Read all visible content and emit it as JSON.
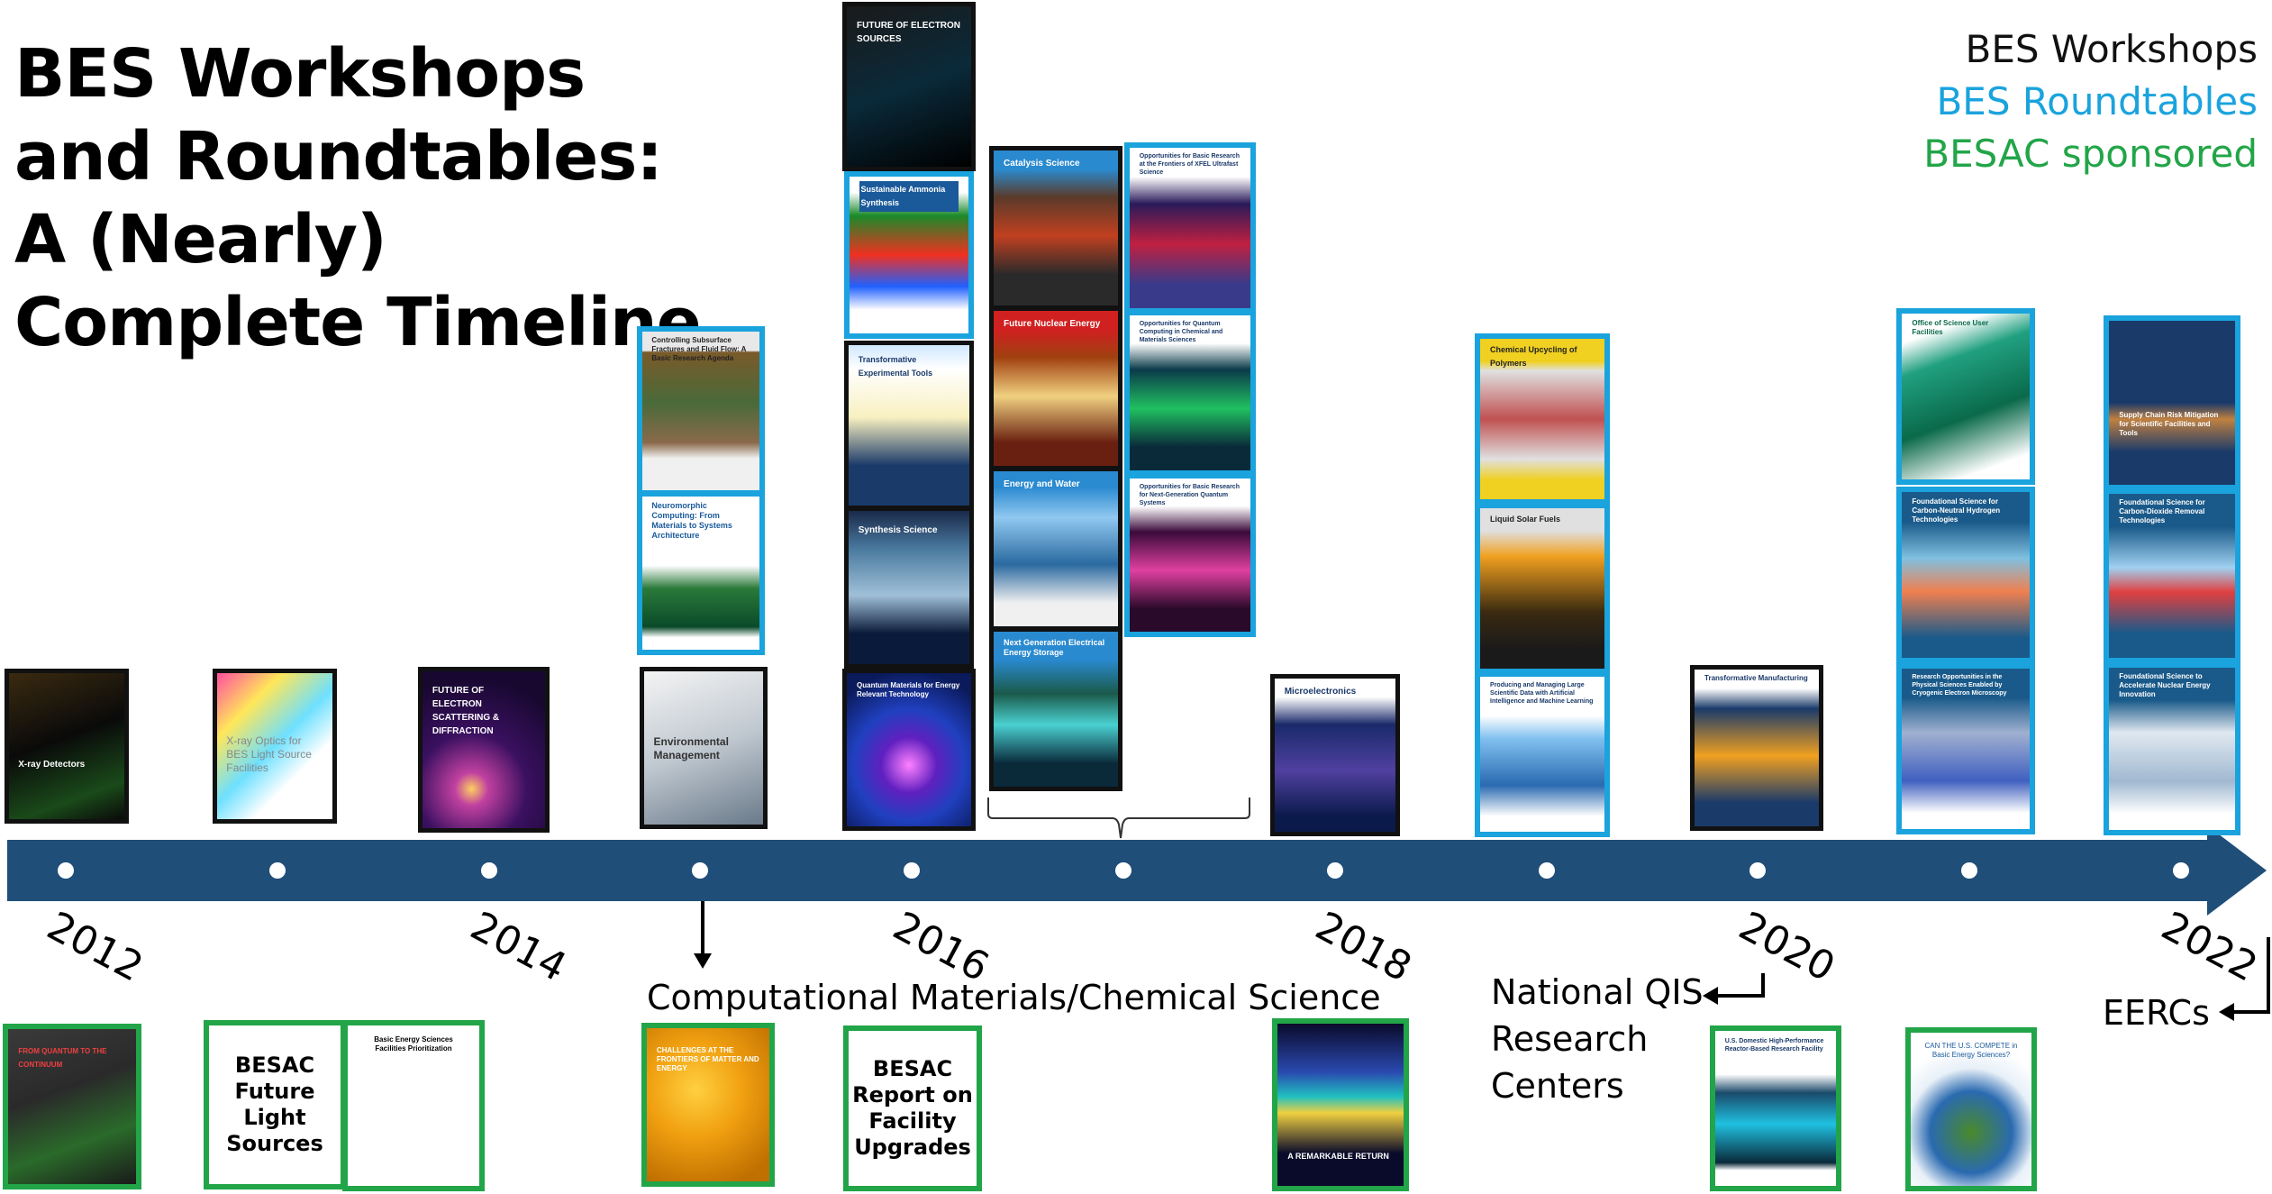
{
  "title": "BES Workshops and Roundtables: A (Nearly) Complete Timeline",
  "legend": [
    {
      "label": "BES Workshops",
      "color": "#111111"
    },
    {
      "label": "BES Roundtables",
      "color": "#1aa3dd"
    },
    {
      "label": "BESAC sponsored",
      "color": "#22a548"
    }
  ],
  "years": [
    "2012",
    "2014",
    "2016",
    "2018",
    "2020",
    "2022"
  ],
  "annotations": {
    "computational": "Computational Materials/Chemical Science",
    "qis": "National QIS Research Centers",
    "eercs": "EERCs"
  },
  "covers": {
    "xray_detectors": {
      "title": "X-ray Detectors"
    },
    "xray_optics": {
      "title": "X-ray Optics for BES Light Source Facilities"
    },
    "electron_scattering": {
      "title": "FUTURE OF ELECTRON SCATTERING & DIFFRACTION"
    },
    "env_mgmt": {
      "title": "Environmental Management"
    },
    "subsurface": {
      "title": "Controlling Subsurface Fractures and Fluid Flow: A Basic Research Agenda"
    },
    "neuromorphic": {
      "title": "Neuromorphic Computing: From Materials to Systems Architecture"
    },
    "electron_sources": {
      "title": "FUTURE OF ELECTRON SOURCES"
    },
    "ammonia": {
      "title": "Sustainable Ammonia Synthesis"
    },
    "exp_tools": {
      "title": "Transformative Experimental Tools"
    },
    "synthesis": {
      "title": "Synthesis Science"
    },
    "quantum_materials": {
      "title": "Quantum Materials for Energy Relevant Technology"
    },
    "catalysis": {
      "title": "Catalysis Science"
    },
    "nuclear_energy": {
      "title": "Future Nuclear Energy"
    },
    "energy_water": {
      "title": "Energy and Water"
    },
    "storage": {
      "title": "Next Generation Electrical Energy Storage"
    },
    "xfel": {
      "title": "Opportunities for Basic Research at the Frontiers of XFEL Ultrafast Science"
    },
    "quantum_computing": {
      "title": "Opportunities for Quantum Computing in Chemical and Materials Sciences"
    },
    "quantum_systems": {
      "title": "Opportunities for Basic Research for Next-Generation Quantum Systems"
    },
    "microelectronics": {
      "title": "Microelectronics"
    },
    "polymers": {
      "title": "Chemical Upcycling of Polymers"
    },
    "solar_fuels": {
      "title": "Liquid Solar Fuels"
    },
    "large_data": {
      "title": "Producing and Managing Large Scientific Data with Artificial Intelligence and Machine Learning"
    },
    "manufacturing": {
      "title": "Transformative Manufacturing"
    },
    "user_facilities": {
      "title": "Office of Science User Facilities"
    },
    "hydrogen": {
      "title": "Foundational Science for Carbon-Neutral Hydrogen Technologies"
    },
    "cryo_em": {
      "title": "Research Opportunities in the Physical Sciences Enabled by Cryogenic Electron Microscopy"
    },
    "supply_chain": {
      "title": "Supply Chain Risk Mitigation for Scientific Facilities and Tools"
    },
    "co2_removal": {
      "title": "Foundational Science for Carbon-Dioxide Removal Technologies"
    },
    "nuclear_innovation": {
      "title": "Foundational Science to Accelerate Nuclear Energy Innovation"
    },
    "grand_challenges": {
      "title": "FROM QUANTUM TO THE CONTINUUM"
    },
    "besac_light": {
      "text": "BESAC Future Light Sources"
    },
    "bes_facilities": {
      "title": "Basic Energy Sciences Facilities Prioritization"
    },
    "challenges_frontier": {
      "title": "CHALLENGES AT THE FRONTIERS OF MATTER AND ENERGY"
    },
    "besac_facility": {
      "text": "BESAC Report on Facility Upgrades"
    },
    "remarkable_return": {
      "title": "A REMARKABLE RETURN"
    },
    "reactor": {
      "title": "U.S. Domestic High-Performance Reactor-Based Research Facility"
    },
    "can_us_compete": {
      "title": "CAN THE U.S. COMPETE in Basic Energy Sciences?"
    }
  }
}
